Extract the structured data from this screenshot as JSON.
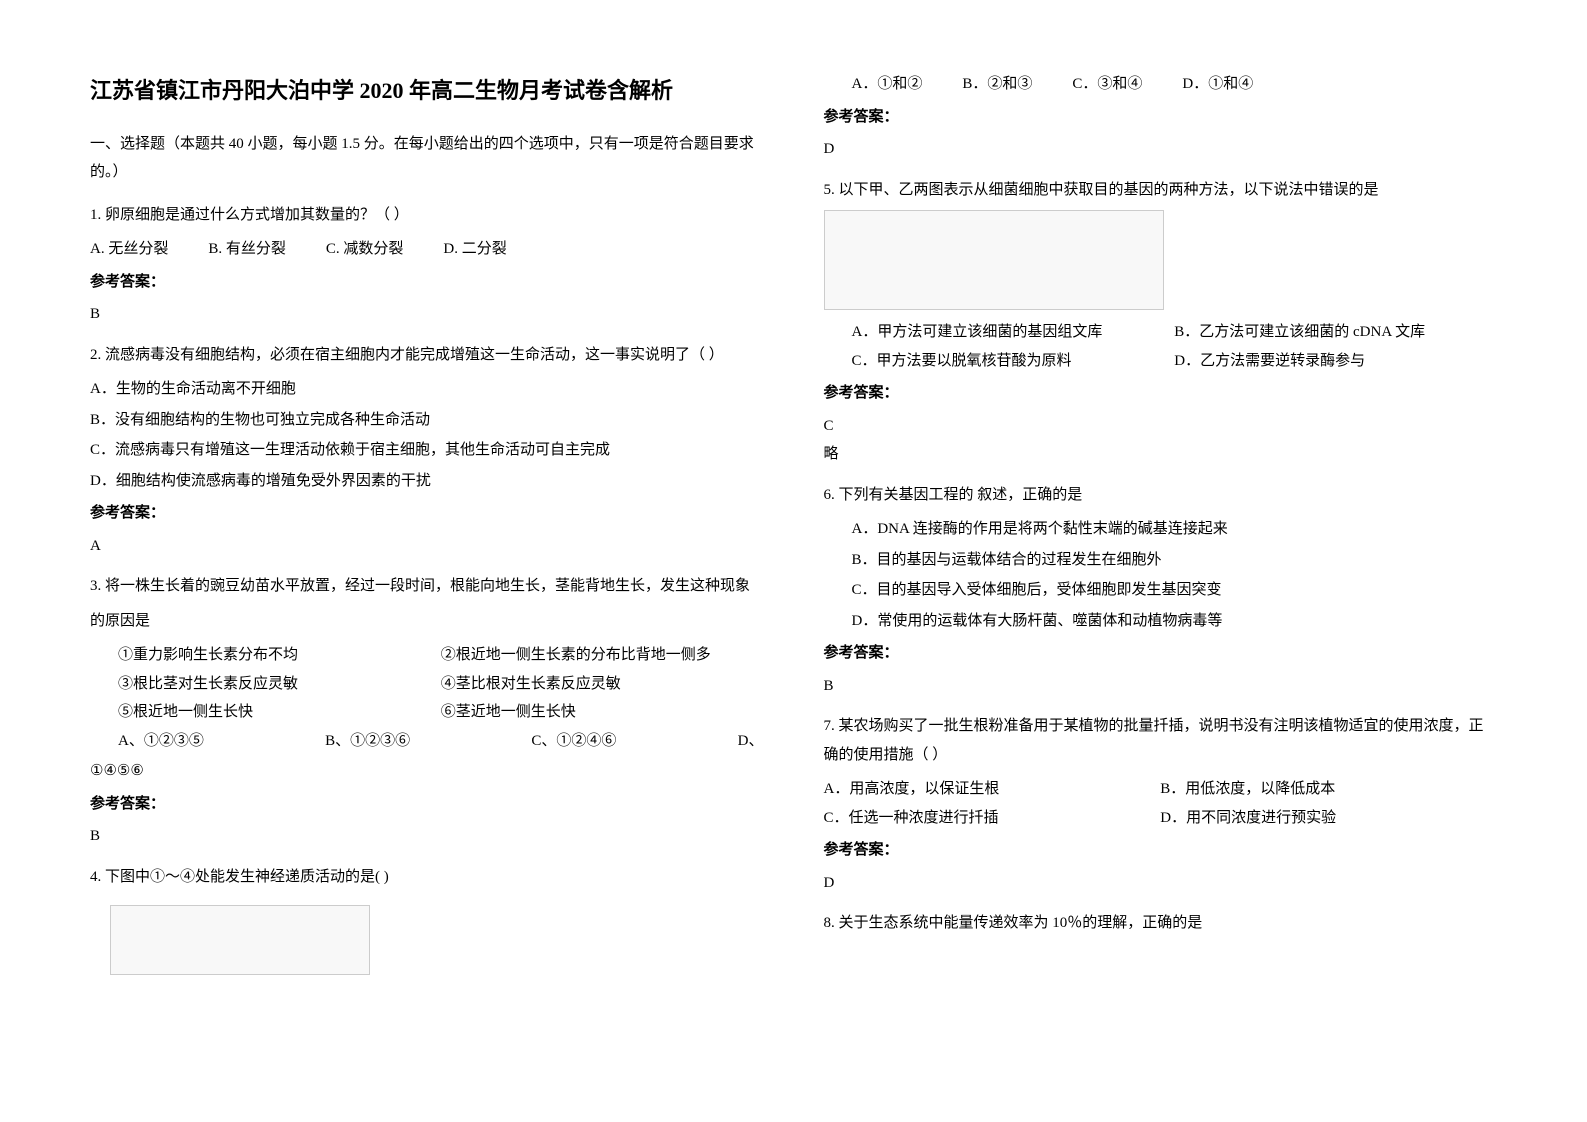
{
  "title": "江苏省镇江市丹阳大泊中学 2020 年高二生物月考试卷含解析",
  "sectionIntro": "一、选择题（本题共 40 小题，每小题 1.5 分。在每小题给出的四个选项中，只有一项是符合题目要求的。）",
  "ansLabel": "参考答案：",
  "q1": {
    "text": "1. 卵原细胞是通过什么方式增加其数量的？（   ）",
    "optA": "A. 无丝分裂",
    "optB": "B. 有丝分裂",
    "optC": "C. 减数分裂",
    "optD": "D. 二分裂",
    "ans": "B"
  },
  "q2": {
    "text": "2. 流感病毒没有细胞结构，必须在宿主细胞内才能完成增殖这一生命活动，这一事实说明了（ ）",
    "optA": "A．生物的生命活动离不开细胞",
    "optB": "B．没有细胞结构的生物也可独立完成各种生命活动",
    "optC": "C．流感病毒只有增殖这一生理活动依赖于宿主细胞，其他生命活动可自主完成",
    "optD": "D．细胞结构使流感病毒的增殖免受外界因素的干扰",
    "ans": "A"
  },
  "q3": {
    "text1": "3. 将一株生长着的豌豆幼苗水平放置，经过一段时间，根能向地生长，茎能背地生长，发生这种现象",
    "text2": "的原因是",
    "s1": "①重力影响生长素分布不均",
    "s2": "②根近地一侧生长素的分布比背地一侧多",
    "s3": "③根比茎对生长素反应灵敏",
    "s4": "④茎比根对生长素反应灵敏",
    "s5": "⑤根近地一侧生长快",
    "s6": "⑥茎近地一侧生长快",
    "optA": "A、①②③⑤",
    "optB": "B、①②③⑥",
    "optC": "C、①②④⑥",
    "optD": "D、",
    "optDline": "①④⑤⑥",
    "ans": "B"
  },
  "q4": {
    "text": "4. 下图中①～④处能发生神经递质活动的是(     )",
    "optA": "A．①和②",
    "optB": "B．②和③",
    "optC": "C．③和④",
    "optD": "D．①和④",
    "ans": "D"
  },
  "q5": {
    "text": "5. 以下甲、乙两图表示从细菌细胞中获取目的基因的两种方法，以下说法中错误的是",
    "optA": "A．甲方法可建立该细菌的基因组文库",
    "optB": "B．乙方法可建立该细菌的 cDNA 文库",
    "optC": "C．甲方法要以脱氧核苷酸为原料",
    "optD": "D．乙方法需要逆转录酶参与",
    "ans": "C",
    "note": "略"
  },
  "q6": {
    "text": "6. 下列有关基因工程的 叙述，正确的是",
    "optA": "A．DNA 连接酶的作用是将两个黏性末端的碱基连接起来",
    "optB": "B．目的基因与运载体结合的过程发生在细胞外",
    "optC": "C．目的基因导入受体细胞后，受体细胞即发生基因突变",
    "optD": "D．常使用的运载体有大肠杆菌、噬菌体和动植物病毒等",
    "ans": "B"
  },
  "q7": {
    "text": "7. 某农场购买了一批生根粉准备用于某植物的批量扦插，说明书没有注明该植物适宜的使用浓度，正确的使用措施（ ）",
    "optA": "A．用高浓度，以保证生根",
    "optB": "B．用低浓度，以降低成本",
    "optC": "C．任选一种浓度进行扦插",
    "optD": "D．用不同浓度进行预实验",
    "ans": "D"
  },
  "q8": {
    "text": "8. 关于生态系统中能量传递效率为 10％的理解，正确的是"
  }
}
